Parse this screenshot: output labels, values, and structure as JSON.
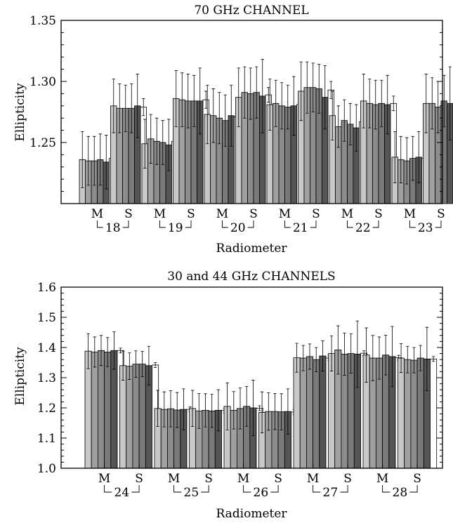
{
  "palette": [
    "#c8c8c8",
    "#a0a0a0",
    "#8c8c8c",
    "#7a7a7a",
    "#555555",
    "#ffffff"
  ],
  "chart_data": [
    {
      "type": "bar",
      "title": "70 GHz CHANNEL",
      "xlabel": "Radiometer",
      "ylabel": "Ellipticity",
      "ylim": [
        1.2,
        1.35
      ],
      "yticks": [
        1.25,
        1.3,
        1.35
      ],
      "ytick_labels": [
        "1.25",
        "1.30",
        "1.35"
      ],
      "minor_step": 0.01,
      "grid": false,
      "categories": [
        "M",
        "S",
        "M",
        "S",
        "M",
        "S",
        "M",
        "S",
        "M",
        "S",
        "M",
        "S"
      ],
      "group_labels": [
        "18",
        "19",
        "20",
        "21",
        "22",
        "23"
      ],
      "values": [
        [
          1.236,
          1.235,
          1.235,
          1.236,
          1.234,
          1.237
        ],
        [
          1.28,
          1.278,
          1.278,
          1.278,
          1.28,
          1.279
        ],
        [
          1.249,
          1.253,
          1.251,
          1.25,
          1.248,
          1.251
        ],
        [
          1.286,
          1.285,
          1.284,
          1.284,
          1.284,
          1.285
        ],
        [
          1.273,
          1.272,
          1.27,
          1.268,
          1.272,
          1.271
        ],
        [
          1.287,
          1.291,
          1.29,
          1.291,
          1.288,
          1.289
        ],
        [
          1.281,
          1.282,
          1.28,
          1.279,
          1.28,
          1.281
        ],
        [
          1.292,
          1.295,
          1.295,
          1.294,
          1.287,
          1.293
        ],
        [
          1.272,
          1.263,
          1.268,
          1.265,
          1.262,
          1.267
        ],
        [
          1.284,
          1.282,
          1.281,
          1.282,
          1.281,
          1.282
        ],
        [
          1.238,
          1.236,
          1.235,
          1.237,
          1.238,
          1.237
        ],
        [
          1.282,
          1.282,
          1.279,
          1.284,
          1.282,
          1.281
        ]
      ],
      "errors": [
        [
          0.023,
          0.02,
          0.02,
          0.021,
          0.022,
          0.006
        ],
        [
          0.022,
          0.02,
          0.019,
          0.02,
          0.026,
          0.007
        ],
        [
          0.02,
          0.02,
          0.019,
          0.018,
          0.021,
          0.006
        ],
        [
          0.023,
          0.022,
          0.022,
          0.021,
          0.027,
          0.007
        ],
        [
          0.024,
          0.022,
          0.021,
          0.021,
          0.025,
          0.006
        ],
        [
          0.024,
          0.021,
          0.021,
          0.021,
          0.03,
          0.006
        ],
        [
          0.021,
          0.019,
          0.019,
          0.018,
          0.024,
          0.006
        ],
        [
          0.024,
          0.021,
          0.02,
          0.02,
          0.026,
          0.007
        ],
        [
          0.02,
          0.017,
          0.017,
          0.017,
          0.019,
          0.004
        ],
        [
          0.022,
          0.02,
          0.02,
          0.019,
          0.024,
          0.006
        ],
        [
          0.021,
          0.019,
          0.019,
          0.018,
          0.021,
          0.006
        ],
        [
          0.024,
          0.021,
          0.021,
          0.021,
          0.03,
          0.006
        ]
      ]
    },
    {
      "type": "bar",
      "title": "30 and 44 GHz CHANNELS",
      "xlabel": "Radiometer",
      "ylabel": "Ellipticity",
      "ylim": [
        1.0,
        1.6
      ],
      "yticks": [
        1.0,
        1.1,
        1.2,
        1.3,
        1.4,
        1.5,
        1.6
      ],
      "ytick_labels": [
        "1.0",
        "1.1",
        "1.2",
        "1.3",
        "1.4",
        "1.5",
        "1.6"
      ],
      "minor_step": 0.02,
      "grid": false,
      "categories": [
        "M",
        "S",
        "M",
        "S",
        "M",
        "S",
        "M",
        "S",
        "M",
        "S"
      ],
      "group_labels": [
        "24",
        "25",
        "26",
        "27",
        "28"
      ],
      "values": [
        [
          1.388,
          1.385,
          1.39,
          1.385,
          1.39,
          1.39
        ],
        [
          1.34,
          1.338,
          1.345,
          1.345,
          1.34,
          1.342
        ],
        [
          1.198,
          1.195,
          1.197,
          1.193,
          1.195,
          1.195
        ],
        [
          1.198,
          1.19,
          1.192,
          1.19,
          1.192,
          1.191
        ],
        [
          1.205,
          1.192,
          1.198,
          1.205,
          1.2,
          1.199
        ],
        [
          1.185,
          1.188,
          1.188,
          1.187,
          1.188,
          1.186
        ],
        [
          1.366,
          1.365,
          1.37,
          1.36,
          1.372,
          1.365
        ],
        [
          1.38,
          1.392,
          1.378,
          1.38,
          1.378,
          1.381
        ],
        [
          1.375,
          1.365,
          1.365,
          1.375,
          1.37,
          1.366
        ],
        [
          1.365,
          1.36,
          1.358,
          1.365,
          1.362,
          1.362
        ]
      ],
      "errors": [
        [
          0.058,
          0.05,
          0.05,
          0.048,
          0.062,
          0.008
        ],
        [
          0.048,
          0.044,
          0.044,
          0.042,
          0.064,
          0.008
        ],
        [
          0.06,
          0.058,
          0.06,
          0.058,
          0.068,
          0.008
        ],
        [
          0.06,
          0.058,
          0.055,
          0.055,
          0.068,
          0.008
        ],
        [
          0.078,
          0.062,
          0.068,
          0.066,
          0.092,
          0.008
        ],
        [
          0.068,
          0.062,
          0.06,
          0.06,
          0.075,
          0.008
        ],
        [
          0.048,
          0.042,
          0.042,
          0.04,
          0.05,
          0.008
        ],
        [
          0.058,
          0.08,
          0.07,
          0.065,
          0.11,
          0.008
        ],
        [
          0.09,
          0.075,
          0.07,
          0.066,
          0.1,
          0.008
        ],
        [
          0.048,
          0.044,
          0.042,
          0.042,
          0.105,
          0.008
        ]
      ]
    }
  ]
}
